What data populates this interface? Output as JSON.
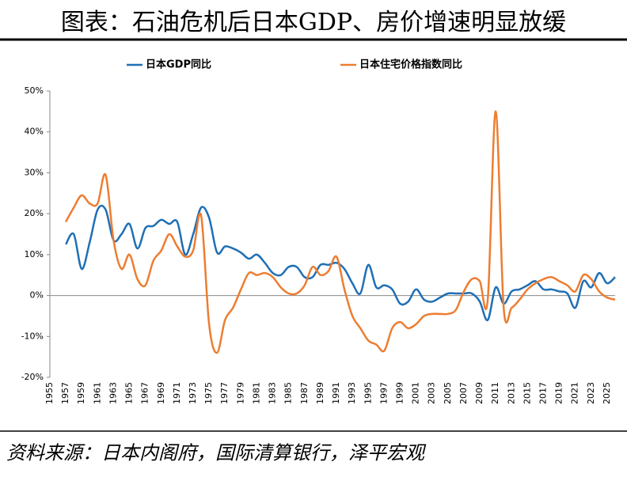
{
  "chart_data": {
    "type": "line",
    "title": "图表：石油危机后日本GDP、房价增速明显放缓",
    "source": "资料来源：日本内阁府，国际清算银行，泽平宏观",
    "categories": [
      "1955",
      null,
      "1957",
      null,
      "1959",
      null,
      "1961",
      null,
      "1963",
      null,
      "1965",
      null,
      "1967",
      null,
      "1969",
      null,
      "1971",
      null,
      "1973",
      null,
      "1975",
      null,
      "1977",
      null,
      "1979",
      null,
      "1981",
      null,
      "1983",
      null,
      "1985",
      null,
      "1987",
      null,
      "1989",
      null,
      "1991",
      null,
      "1993",
      null,
      "1995",
      null,
      "1997",
      null,
      "1999",
      null,
      "2001",
      null,
      "2003",
      null,
      "2005",
      null,
      "2007",
      null,
      "2009",
      null,
      "2011",
      null,
      "2013",
      null,
      "2015",
      null,
      "2017",
      null,
      "2019",
      null,
      "2021",
      null,
      "2023",
      null,
      "2025",
      null
    ],
    "series": [
      {
        "name": "日本GDP同比",
        "color": "#1f6fb5",
        "values": [
          null,
          null,
          12.5,
          15,
          6.5,
          13,
          21,
          21,
          13.5,
          15,
          17.5,
          11.5,
          16.5,
          17,
          18.5,
          17.5,
          18,
          10,
          15,
          21.5,
          19,
          10.5,
          12,
          11.5,
          10.5,
          9,
          10,
          8,
          5.5,
          5,
          7,
          7,
          4.5,
          4.5,
          7.5,
          7.5,
          8,
          6.5,
          3,
          0.5,
          7.5,
          2,
          2.5,
          1.5,
          -2,
          -1.5,
          1.5,
          -1,
          -1.5,
          -0.5,
          0.5,
          0.5,
          0.5,
          0.5,
          -1.5,
          -6,
          2,
          -2,
          1,
          1.5,
          2.5,
          3.5,
          1.5,
          1.5,
          1,
          0.5,
          -3,
          3.5,
          2,
          5.5,
          3,
          4.5
        ]
      },
      {
        "name": "日本住宅价格指数同比",
        "color": "#ed7d31",
        "values": [
          null,
          null,
          18,
          21.5,
          24.5,
          22.5,
          22.5,
          29.5,
          13.5,
          6.5,
          10,
          4,
          2.5,
          8.5,
          11,
          15,
          12,
          9.5,
          11,
          19.5,
          -7,
          -14,
          -6,
          -3,
          1.5,
          5.5,
          5,
          5.5,
          4.5,
          2,
          0.5,
          0.5,
          2.5,
          7,
          5,
          6,
          9.5,
          1.5,
          -5,
          -8,
          -11,
          -12,
          -13.5,
          -8,
          -6.5,
          -8,
          -7,
          -5,
          -4.5,
          -4.5,
          -4.5,
          -3.5,
          1,
          4,
          3.5,
          -1,
          45,
          -3,
          -3,
          -1,
          1.5,
          3,
          4,
          4.5,
          3.5,
          2.5,
          1,
          5,
          4,
          1,
          -0.5,
          -1
        ]
      }
    ],
    "ylim": [
      -20,
      50
    ],
    "yticks": [
      {
        "value": -20,
        "label": "-20%"
      },
      {
        "value": -10,
        "label": "-10%"
      },
      {
        "value": 0,
        "label": "0%"
      },
      {
        "value": 10,
        "label": "10%"
      },
      {
        "value": 20,
        "label": "20%"
      },
      {
        "value": 30,
        "label": "30%"
      },
      {
        "value": 40,
        "label": "40%"
      },
      {
        "value": 50,
        "label": "50%"
      }
    ],
    "grid": false
  }
}
